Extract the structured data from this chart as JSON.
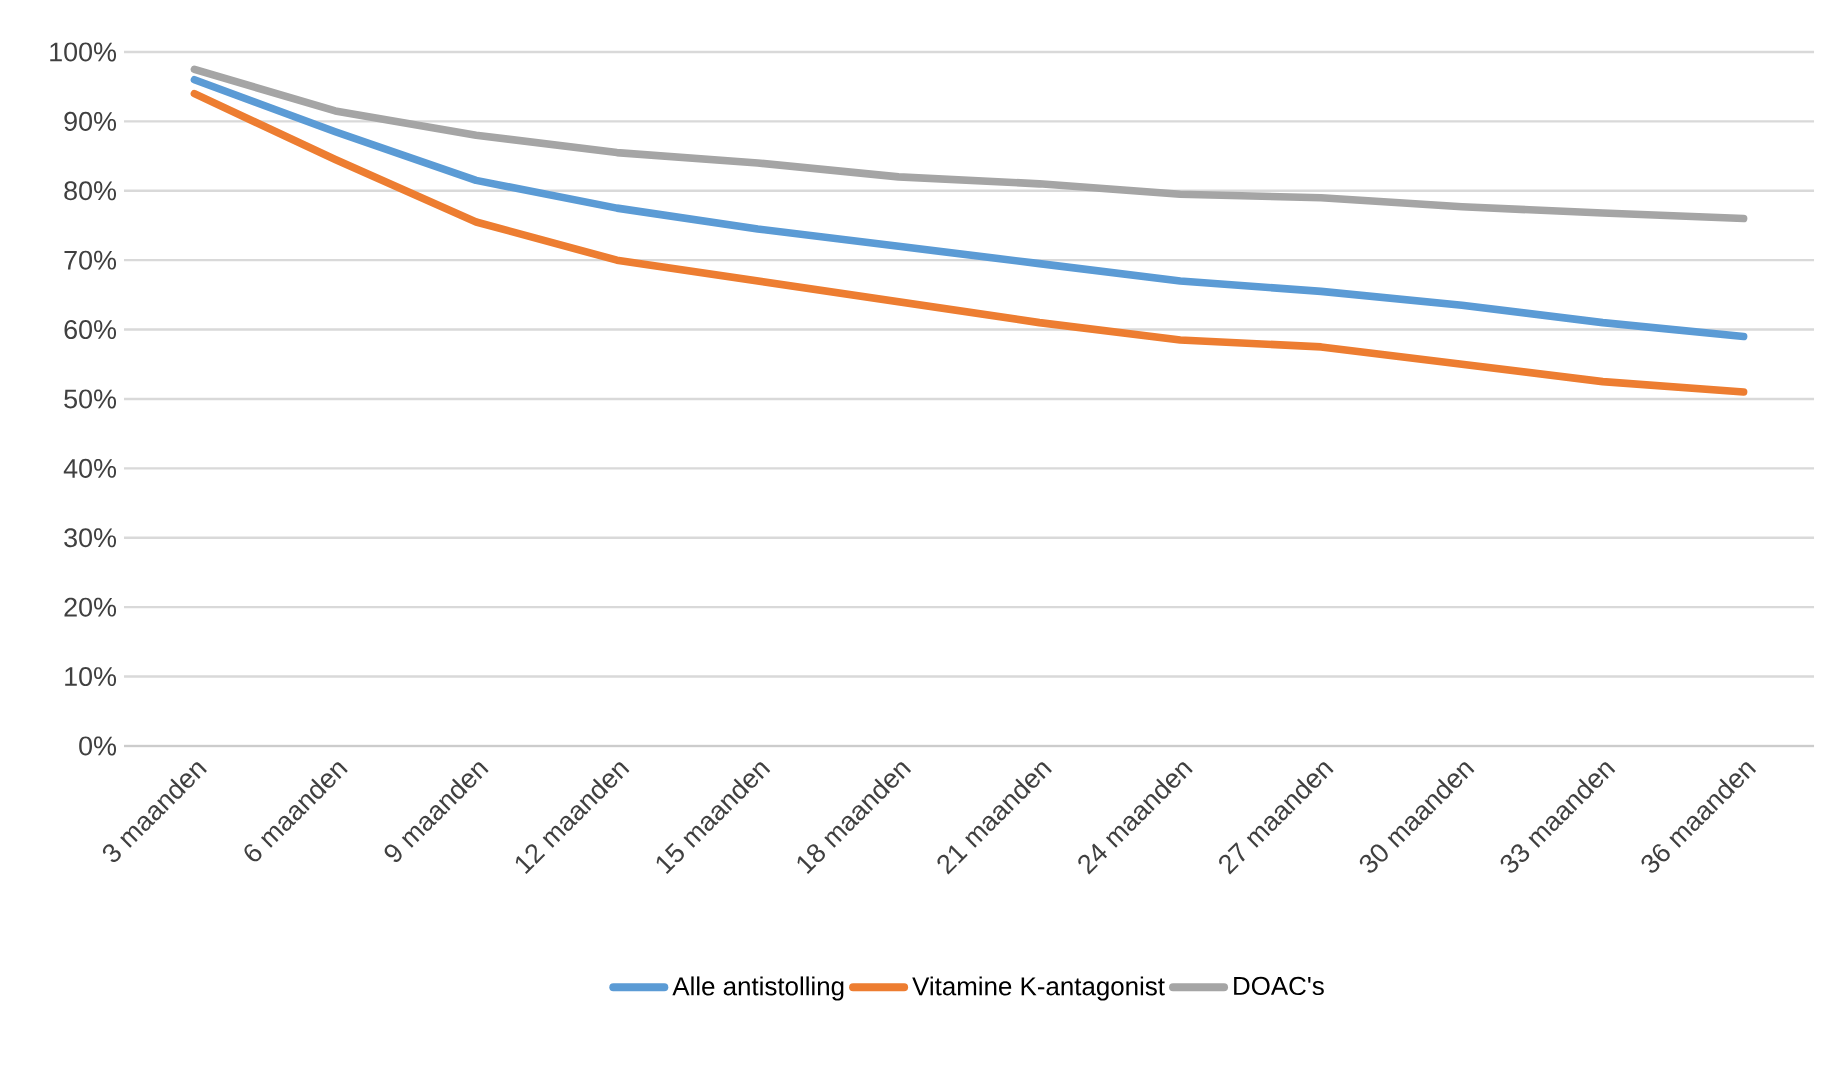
{
  "chart_data": {
    "type": "line",
    "categories": [
      "3 maanden",
      "6 maanden",
      "9 maanden",
      "12 maanden",
      "15 maanden",
      "18 maanden",
      "21 maanden",
      "24 maanden",
      "27 maanden",
      "30 maanden",
      "33 maanden",
      "36 maanden"
    ],
    "series": [
      {
        "name": "Alle antistolling",
        "color": "#5b9bd5",
        "values": [
          96,
          88.5,
          81.5,
          77.5,
          74.5,
          72,
          69.5,
          67,
          65.5,
          63.5,
          61,
          59
        ]
      },
      {
        "name": "Vitamine K-antagonist",
        "color": "#ed7d31",
        "values": [
          94,
          84.5,
          75.5,
          70,
          67,
          64,
          61,
          58.5,
          57.5,
          55,
          52.5,
          51
        ]
      },
      {
        "name": "DOAC's",
        "color": "#a5a5a5",
        "values": [
          97.5,
          91.5,
          88,
          85.5,
          84,
          82,
          81,
          79.5,
          79,
          77.7,
          76.8,
          76
        ]
      }
    ],
    "ylim": [
      0,
      100
    ],
    "yticks": [
      {
        "value": 0,
        "label": "0%"
      },
      {
        "value": 10,
        "label": "10%"
      },
      {
        "value": 20,
        "label": "20%"
      },
      {
        "value": 30,
        "label": "30%"
      },
      {
        "value": 40,
        "label": "40%"
      },
      {
        "value": 50,
        "label": "50%"
      },
      {
        "value": 60,
        "label": "60%"
      },
      {
        "value": 70,
        "label": "70%"
      },
      {
        "value": 80,
        "label": "80%"
      },
      {
        "value": 90,
        "label": "90%"
      },
      {
        "value": 100,
        "label": "100%"
      }
    ],
    "grid": "y",
    "legend": "bottom",
    "marker": "none",
    "line_style": "solid"
  }
}
